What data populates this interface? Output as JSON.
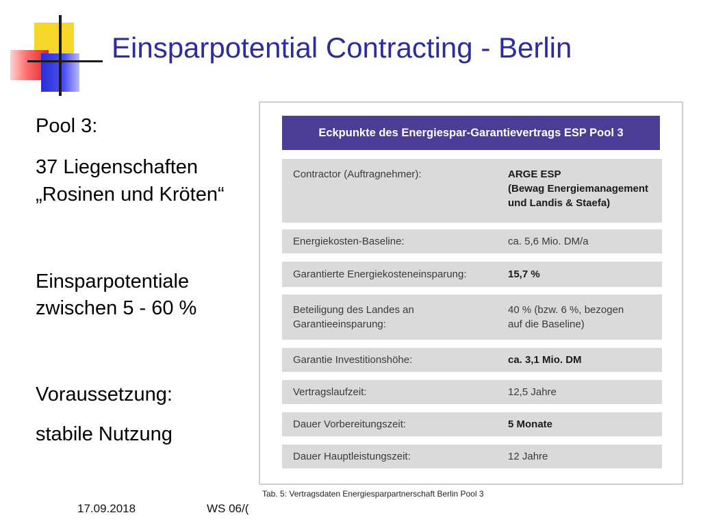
{
  "slide": {
    "title": "Einsparpotential Contracting - Berlin"
  },
  "left": {
    "pool": "Pool 3:",
    "properties_line1": "37 Liegenschaften",
    "properties_line2": "„Rosinen und Kröten“",
    "potential_line1": "Einsparpotentiale",
    "potential_line2": "zwischen 5 - 60 %",
    "requirement_label": "Voraussetzung:",
    "requirement_value": "stabile Nutzung"
  },
  "table": {
    "header": "Eckpunkte des Energiespar-Garantievertrags ESP Pool 3",
    "rows": [
      {
        "key_lines": [
          "Contractor (Auftragnehmer):"
        ],
        "value_lines": [
          "ARGE ESP",
          "(Bewag Energiemanagement",
          "und Landis & Staefa)"
        ],
        "value_bold": true
      },
      {
        "key_lines": [
          "Energiekosten-Baseline:"
        ],
        "value_lines": [
          "ca. 5,6 Mio. DM/a"
        ],
        "value_bold": false
      },
      {
        "key_lines": [
          "Garantierte Energiekosteneinsparung:"
        ],
        "value_lines": [
          "15,7 %"
        ],
        "value_bold": true
      },
      {
        "key_lines": [
          "Beteiligung des Landes an",
          "Garantieeinsparung:"
        ],
        "value_lines": [
          "40 % (bzw. 6 %, bezogen",
          "auf die Baseline)"
        ],
        "value_bold": false
      },
      {
        "key_lines": [
          "Garantie Investitionshöhe:"
        ],
        "value_lines": [
          "ca. 3,1 Mio. DM"
        ],
        "value_bold": true
      },
      {
        "key_lines": [
          "Vertragslaufzeit:"
        ],
        "value_lines": [
          "12,5 Jahre"
        ],
        "value_bold": false
      },
      {
        "key_lines": [
          "Dauer Vorbereitungszeit:"
        ],
        "value_lines": [
          "5 Monate"
        ],
        "value_bold": true
      },
      {
        "key_lines": [
          "Dauer Hauptleistungszeit:"
        ],
        "value_lines": [
          "12 Jahre"
        ],
        "value_bold": false
      }
    ],
    "caption": "Tab. 5: Vertragsdaten Energiesparpartnerschaft Berlin Pool 3"
  },
  "footer": {
    "date": "17.09.2018",
    "semester": "WS 06/("
  },
  "colors": {
    "title": "#2c2c9c",
    "table_header_bg": "#4b3d96",
    "table_row_bg": "#dadada"
  }
}
